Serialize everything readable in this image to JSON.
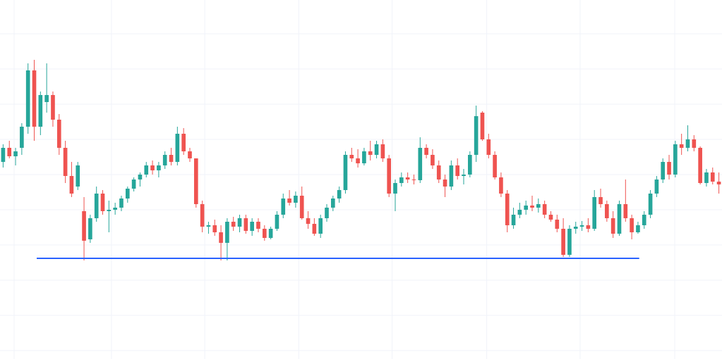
{
  "chart_data": {
    "type": "candlestick",
    "xlim": [
      -0.5,
      115.5
    ],
    "xticks": [
      1.77,
      17.4,
      32.4,
      47.5,
      62.5,
      77.7,
      92.7,
      107.9
    ],
    "ylim": [
      0,
      510
    ],
    "yticks": [
      12,
      62,
      112,
      162,
      212,
      262,
      312,
      362,
      412,
      462
    ],
    "grid": true,
    "up_color": "#26a69a",
    "down_color": "#ef5350",
    "support": {
      "x": [
        5.4,
        102.2
      ],
      "value": 143,
      "color": "#2962ff"
    },
    "ohlc": [
      [
        280,
        305,
        272,
        300
      ],
      [
        300,
        310,
        285,
        288
      ],
      [
        288,
        300,
        275,
        295
      ],
      [
        300,
        335,
        290,
        330
      ],
      [
        330,
        420,
        320,
        410
      ],
      [
        410,
        425,
        310,
        330
      ],
      [
        330,
        380,
        318,
        375
      ],
      [
        365,
        420,
        350,
        375
      ],
      [
        375,
        380,
        330,
        340
      ],
      [
        340,
        348,
        290,
        300
      ],
      [
        300,
        310,
        250,
        260
      ],
      [
        260,
        280,
        230,
        235
      ],
      [
        245,
        280,
        240,
        275
      ],
      [
        210,
        230,
        140,
        168
      ],
      [
        170,
        205,
        165,
        200
      ],
      [
        200,
        245,
        195,
        235
      ],
      [
        235,
        240,
        205,
        210
      ],
      [
        210,
        225,
        180,
        212
      ],
      [
        212,
        222,
        205,
        215
      ],
      [
        215,
        232,
        210,
        228
      ],
      [
        228,
        245,
        222,
        242
      ],
      [
        242,
        258,
        238,
        255
      ],
      [
        255,
        265,
        245,
        262
      ],
      [
        262,
        280,
        258,
        275
      ],
      [
        275,
        282,
        262,
        268
      ],
      [
        268,
        280,
        258,
        275
      ],
      [
        275,
        295,
        270,
        290
      ],
      [
        290,
        300,
        275,
        280
      ],
      [
        280,
        330,
        275,
        320
      ],
      [
        320,
        328,
        290,
        295
      ],
      [
        295,
        300,
        280,
        285
      ],
      [
        285,
        285,
        215,
        220
      ],
      [
        220,
        225,
        180,
        188
      ],
      [
        188,
        195,
        178,
        190
      ],
      [
        190,
        198,
        175,
        180
      ],
      [
        180,
        190,
        140,
        165
      ],
      [
        165,
        200,
        140,
        195
      ],
      [
        195,
        202,
        182,
        188
      ],
      [
        188,
        205,
        180,
        200
      ],
      [
        200,
        205,
        178,
        182
      ],
      [
        182,
        200,
        175,
        195
      ],
      [
        195,
        200,
        180,
        185
      ],
      [
        185,
        190,
        168,
        172
      ],
      [
        172,
        188,
        170,
        185
      ],
      [
        185,
        210,
        182,
        205
      ],
      [
        205,
        235,
        200,
        228
      ],
      [
        228,
        240,
        218,
        222
      ],
      [
        222,
        238,
        215,
        232
      ],
      [
        232,
        245,
        198,
        200
      ],
      [
        200,
        210,
        185,
        192
      ],
      [
        192,
        200,
        175,
        178
      ],
      [
        178,
        205,
        172,
        200
      ],
      [
        200,
        220,
        195,
        215
      ],
      [
        215,
        232,
        210,
        228
      ],
      [
        228,
        245,
        222,
        240
      ],
      [
        240,
        295,
        235,
        290
      ],
      [
        290,
        300,
        280,
        285
      ],
      [
        285,
        298,
        272,
        278
      ],
      [
        278,
        300,
        275,
        295
      ],
      [
        295,
        310,
        282,
        290
      ],
      [
        290,
        310,
        285,
        305
      ],
      [
        305,
        312,
        280,
        285
      ],
      [
        285,
        290,
        230,
        235
      ],
      [
        235,
        255,
        210,
        250
      ],
      [
        250,
        265,
        245,
        258
      ],
      [
        258,
        265,
        250,
        255
      ],
      [
        255,
        262,
        248,
        254
      ],
      [
        254,
        315,
        250,
        300
      ],
      [
        300,
        305,
        285,
        290
      ],
      [
        290,
        298,
        270,
        275
      ],
      [
        275,
        282,
        250,
        255
      ],
      [
        255,
        262,
        230,
        245
      ],
      [
        245,
        282,
        240,
        275
      ],
      [
        275,
        285,
        255,
        260
      ],
      [
        260,
        270,
        248,
        262
      ],
      [
        262,
        295,
        258,
        290
      ],
      [
        290,
        360,
        280,
        345
      ],
      [
        350,
        352,
        310,
        312
      ],
      [
        312,
        320,
        285,
        290
      ],
      [
        290,
        295,
        255,
        258
      ],
      [
        258,
        265,
        230,
        235
      ],
      [
        235,
        240,
        180,
        190
      ],
      [
        190,
        215,
        185,
        205
      ],
      [
        205,
        222,
        200,
        212
      ],
      [
        212,
        225,
        205,
        218
      ],
      [
        218,
        232,
        210,
        215
      ],
      [
        215,
        228,
        208,
        220
      ],
      [
        220,
        225,
        200,
        205
      ],
      [
        205,
        210,
        195,
        198
      ],
      [
        198,
        205,
        180,
        185
      ],
      [
        185,
        200,
        145,
        148
      ],
      [
        148,
        190,
        145,
        185
      ],
      [
        185,
        195,
        178,
        188
      ],
      [
        188,
        196,
        182,
        190
      ],
      [
        190,
        200,
        180,
        185
      ],
      [
        185,
        240,
        182,
        230
      ],
      [
        230,
        242,
        215,
        220
      ],
      [
        220,
        225,
        195,
        200
      ],
      [
        200,
        210,
        172,
        178
      ],
      [
        178,
        225,
        175,
        220
      ],
      [
        220,
        255,
        195,
        200
      ],
      [
        200,
        205,
        170,
        180
      ],
      [
        180,
        195,
        178,
        190
      ],
      [
        190,
        210,
        185,
        205
      ],
      [
        205,
        240,
        200,
        235
      ],
      [
        235,
        260,
        230,
        255
      ],
      [
        255,
        285,
        250,
        280
      ],
      [
        280,
        290,
        255,
        262
      ],
      [
        262,
        310,
        258,
        305
      ],
      [
        305,
        320,
        290,
        300
      ],
      [
        300,
        332,
        295,
        312
      ],
      [
        312,
        318,
        295,
        300
      ],
      [
        300,
        302,
        248,
        250
      ],
      [
        250,
        270,
        245,
        265
      ],
      [
        265,
        272,
        248,
        252
      ],
      [
        252,
        265,
        235,
        248
      ]
    ]
  }
}
